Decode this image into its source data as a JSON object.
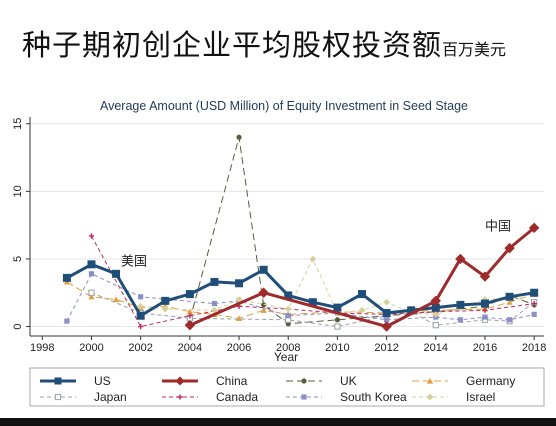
{
  "slide": {
    "title": "种子期初创企业平均股权投资额",
    "title_unit": "百万美元"
  },
  "chart_data": {
    "type": "line",
    "title": "Average Amount (USD Million) of Equity Investment in Seed Stage",
    "xlabel": "Year",
    "ylabel": "",
    "xlim": [
      1997.5,
      2018.4
    ],
    "ylim": [
      -0.7,
      15.5
    ],
    "xticks": [
      1998,
      2000,
      2002,
      2004,
      2006,
      2008,
      2010,
      2012,
      2014,
      2016,
      2018
    ],
    "yticks": [
      0,
      5,
      10,
      15
    ],
    "grid": true,
    "legend_position": "bottom",
    "annotations": [
      {
        "text": "美国",
        "x": 2001.2,
        "y": 4.5
      },
      {
        "text": "中国",
        "x": 2016.0,
        "y": 7.1
      }
    ],
    "series": [
      {
        "name": "US",
        "color": "#1f4e79",
        "style": "solid",
        "marker": "square",
        "width": 3,
        "points": [
          [
            1999,
            3.6
          ],
          [
            2000,
            4.6
          ],
          [
            2001,
            3.9
          ],
          [
            2002,
            0.8
          ],
          [
            2003,
            1.9
          ],
          [
            2004,
            2.4
          ],
          [
            2005,
            3.3
          ],
          [
            2006,
            3.2
          ],
          [
            2007,
            4.2
          ],
          [
            2008,
            2.3
          ],
          [
            2009,
            1.8
          ],
          [
            2010,
            1.4
          ],
          [
            2011,
            2.4
          ],
          [
            2012,
            1.0
          ],
          [
            2013,
            1.2
          ],
          [
            2014,
            1.4
          ],
          [
            2015,
            1.6
          ],
          [
            2016,
            1.7
          ],
          [
            2017,
            2.2
          ],
          [
            2018,
            2.5
          ]
        ]
      },
      {
        "name": "China",
        "color": "#9e2a2b",
        "style": "solid",
        "marker": "diamond",
        "width": 3,
        "points": [
          [
            2004,
            0.1
          ],
          [
            2007,
            2.5
          ],
          [
            2012,
            0.0
          ],
          [
            2014,
            1.9
          ],
          [
            2015,
            5.0
          ],
          [
            2016,
            3.7
          ],
          [
            2017,
            5.8
          ],
          [
            2018,
            7.3
          ]
        ]
      },
      {
        "name": "UK",
        "color": "#55603a",
        "style": "longdash",
        "marker": "circle",
        "width": 1,
        "points": [
          [
            2004,
            0.5
          ],
          [
            2006,
            14.0
          ],
          [
            2007,
            1.6
          ],
          [
            2008,
            0.2
          ],
          [
            2010,
            0.5
          ],
          [
            2012,
            0.8
          ],
          [
            2014,
            1.1
          ],
          [
            2016,
            1.5
          ],
          [
            2017,
            2.3
          ],
          [
            2018,
            1.6
          ]
        ]
      },
      {
        "name": "Germany",
        "color": "#e0a040",
        "style": "longdash",
        "marker": "triangle",
        "width": 1,
        "points": [
          [
            1999,
            3.3
          ],
          [
            2000,
            2.2
          ],
          [
            2001,
            2.0
          ],
          [
            2002,
            1.4
          ],
          [
            2003,
            1.5
          ],
          [
            2004,
            1.1
          ],
          [
            2005,
            0.9
          ],
          [
            2006,
            0.6
          ],
          [
            2007,
            1.2
          ],
          [
            2008,
            0.9
          ],
          [
            2010,
            1.1
          ],
          [
            2012,
            1.0
          ],
          [
            2014,
            1.2
          ],
          [
            2016,
            1.3
          ],
          [
            2017,
            1.8
          ],
          [
            2018,
            2.4
          ]
        ]
      },
      {
        "name": "Japan",
        "color": "#9aa0a6",
        "style": "dash",
        "marker": "hollow-square",
        "width": 1,
        "points": [
          [
            2000,
            2.5
          ],
          [
            2002,
            1.0
          ],
          [
            2004,
            0.6
          ],
          [
            2008,
            0.5
          ],
          [
            2010,
            0.0
          ],
          [
            2012,
            0.8
          ],
          [
            2013,
            1.1
          ],
          [
            2014,
            0.1
          ],
          [
            2016,
            0.5
          ],
          [
            2017,
            0.4
          ],
          [
            2018,
            1.8
          ]
        ]
      },
      {
        "name": "Canada",
        "color": "#c0285a",
        "style": "dash",
        "marker": "plus",
        "width": 1,
        "points": [
          [
            2000,
            6.7
          ],
          [
            2002,
            0.0
          ],
          [
            2004,
            0.8
          ],
          [
            2006,
            1.5
          ],
          [
            2008,
            1.3
          ],
          [
            2010,
            1.0
          ],
          [
            2012,
            0.9
          ],
          [
            2014,
            1.1
          ],
          [
            2016,
            1.2
          ],
          [
            2018,
            1.7
          ]
        ]
      },
      {
        "name": "South Korea",
        "color": "#8a8fc7",
        "style": "dash",
        "marker": "square",
        "width": 1,
        "points": [
          [
            1999,
            0.4
          ],
          [
            2000,
            3.9
          ],
          [
            2002,
            2.2
          ],
          [
            2005,
            1.7
          ],
          [
            2006,
            1.9
          ],
          [
            2008,
            0.8
          ],
          [
            2010,
            1.0
          ],
          [
            2012,
            0.5
          ],
          [
            2014,
            0.7
          ],
          [
            2015,
            0.5
          ],
          [
            2016,
            0.7
          ],
          [
            2017,
            0.5
          ],
          [
            2018,
            0.9
          ]
        ]
      },
      {
        "name": "Israel",
        "color": "#d8d09a",
        "style": "dash",
        "marker": "diamond",
        "width": 1,
        "points": [
          [
            2002,
            1.5
          ],
          [
            2003,
            1.3
          ],
          [
            2005,
            1.2
          ],
          [
            2006,
            2.0
          ],
          [
            2008,
            1.3
          ],
          [
            2009,
            5.0
          ],
          [
            2010,
            1.0
          ],
          [
            2011,
            1.2
          ],
          [
            2012,
            1.8
          ],
          [
            2013,
            1.0
          ],
          [
            2014,
            0.9
          ],
          [
            2015,
            1.4
          ],
          [
            2016,
            2.0
          ],
          [
            2017,
            2.1
          ],
          [
            2018,
            2.5
          ]
        ]
      }
    ]
  }
}
